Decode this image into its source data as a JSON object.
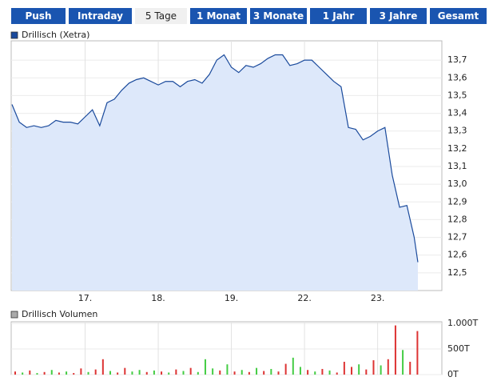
{
  "tabs": [
    "Push",
    "Intraday",
    "5 Tage",
    "1 Monat",
    "3 Monate",
    "1 Jahr",
    "3 Jahre",
    "Gesamt"
  ],
  "active_tab": 2,
  "chart_data": [
    {
      "type": "area",
      "x": [
        0,
        0.1,
        0.2,
        0.3,
        0.4,
        0.5,
        0.6,
        0.7,
        0.8,
        0.9,
        1.0,
        1.1,
        1.2,
        1.3,
        1.4,
        1.5,
        1.6,
        1.7,
        1.8,
        1.9,
        2.0,
        2.1,
        2.2,
        2.3,
        2.4,
        2.5,
        2.6,
        2.7,
        2.8,
        2.9,
        3.0,
        3.1,
        3.2,
        3.3,
        3.4,
        3.5,
        3.6,
        3.7,
        3.8,
        3.9,
        4.0,
        4.1,
        4.2,
        4.3,
        4.4,
        4.5,
        4.6,
        4.7,
        4.8,
        4.9,
        5.0,
        5.1,
        5.2,
        5.3,
        5.4,
        5.5,
        5.55
      ],
      "series": [
        {
          "name": "Drillisch (Xetra)",
          "color": "#1a4a9c",
          "fill": "#dde8fa",
          "values": [
            13.45,
            13.35,
            13.32,
            13.33,
            13.32,
            13.33,
            13.36,
            13.35,
            13.35,
            13.34,
            13.38,
            13.42,
            13.33,
            13.46,
            13.48,
            13.53,
            13.57,
            13.59,
            13.6,
            13.58,
            13.56,
            13.58,
            13.58,
            13.55,
            13.58,
            13.59,
            13.57,
            13.62,
            13.7,
            13.73,
            13.66,
            13.63,
            13.67,
            13.66,
            13.68,
            13.71,
            13.73,
            13.73,
            13.67,
            13.68,
            13.7,
            13.7,
            13.66,
            13.62,
            13.58,
            13.55,
            13.32,
            13.31,
            13.25,
            13.27,
            13.3,
            13.32,
            13.05,
            12.87,
            12.88,
            12.7,
            12.56
          ]
        }
      ],
      "xlim": [
        0,
        5.9
      ],
      "xticks": [
        {
          "value": 1,
          "label": "17."
        },
        {
          "value": 2,
          "label": "18."
        },
        {
          "value": 3,
          "label": "19."
        },
        {
          "value": 4,
          "label": "22."
        },
        {
          "value": 5,
          "label": "23."
        }
      ],
      "ylim": [
        12.4,
        13.8
      ],
      "yticks": [
        {
          "value": 12.5,
          "label": "12,5"
        },
        {
          "value": 12.6,
          "label": "12,6"
        },
        {
          "value": 12.7,
          "label": "12,7"
        },
        {
          "value": 12.8,
          "label": "12,8"
        },
        {
          "value": 12.9,
          "label": "12,9"
        },
        {
          "value": 13.0,
          "label": "13,0"
        },
        {
          "value": 13.1,
          "label": "13,1"
        },
        {
          "value": 13.2,
          "label": "13,2"
        },
        {
          "value": 13.3,
          "label": "13,3"
        },
        {
          "value": 13.4,
          "label": "13,4"
        },
        {
          "value": 13.5,
          "label": "13,5"
        },
        {
          "value": 13.6,
          "label": "13,6"
        },
        {
          "value": 13.7,
          "label": "13,7"
        }
      ],
      "grid": true
    },
    {
      "type": "bar",
      "x": [
        0,
        0.1,
        0.2,
        0.3,
        0.4,
        0.5,
        0.6,
        0.7,
        0.8,
        0.9,
        1.0,
        1.1,
        1.2,
        1.3,
        1.4,
        1.5,
        1.6,
        1.7,
        1.8,
        1.9,
        2.0,
        2.1,
        2.2,
        2.3,
        2.4,
        2.5,
        2.6,
        2.7,
        2.8,
        2.9,
        3.0,
        3.1,
        3.2,
        3.3,
        3.4,
        3.5,
        3.6,
        3.7,
        3.8,
        3.9,
        4.0,
        4.1,
        4.2,
        4.3,
        4.4,
        4.5,
        4.6,
        4.7,
        4.8,
        4.9,
        5.0,
        5.1,
        5.2,
        5.3,
        5.4,
        5.5
      ],
      "series": [
        {
          "name": "Drillisch Volumen",
          "color": "#aaaaaa",
          "values": [
            60,
            40,
            80,
            30,
            50,
            90,
            40,
            60,
            30,
            120,
            50,
            100,
            300,
            70,
            40,
            130,
            60,
            90,
            50,
            80,
            60,
            40,
            100,
            70,
            130,
            50,
            300,
            120,
            80,
            200,
            60,
            90,
            50,
            130,
            70,
            110,
            60,
            210,
            330,
            150,
            90,
            60,
            110,
            80,
            40,
            250,
            150,
            200,
            100,
            280,
            180,
            300,
            960,
            480,
            250,
            850
          ],
          "colors": [
            "#dd3333",
            "#44cc44",
            "#dd3333",
            "#44cc44",
            "#dd3333",
            "#44cc44",
            "#dd3333",
            "#44cc44",
            "#dd3333",
            "#dd3333",
            "#44cc44",
            "#dd3333",
            "#dd3333",
            "#44cc44",
            "#dd3333",
            "#dd3333",
            "#44cc44",
            "#44cc44",
            "#dd3333",
            "#44cc44",
            "#dd3333",
            "#44cc44",
            "#dd3333",
            "#44cc44",
            "#dd3333",
            "#44cc44",
            "#44cc44",
            "#44cc44",
            "#dd3333",
            "#44cc44",
            "#dd3333",
            "#44cc44",
            "#dd3333",
            "#44cc44",
            "#dd3333",
            "#44cc44",
            "#dd3333",
            "#dd3333",
            "#44cc44",
            "#44cc44",
            "#dd3333",
            "#44cc44",
            "#dd3333",
            "#44cc44",
            "#dd3333",
            "#dd3333",
            "#dd3333",
            "#44cc44",
            "#dd3333",
            "#dd3333",
            "#44cc44",
            "#dd3333",
            "#dd3333",
            "#44cc44",
            "#dd3333",
            "#dd3333"
          ]
        }
      ],
      "xlim": [
        0,
        5.9
      ],
      "ylim": [
        0,
        1000
      ],
      "yticks": [
        {
          "value": 1000,
          "label": "1.000T"
        },
        {
          "value": 500,
          "label": "500T"
        },
        {
          "value": 0,
          "label": "0T"
        }
      ],
      "grid": true
    }
  ]
}
